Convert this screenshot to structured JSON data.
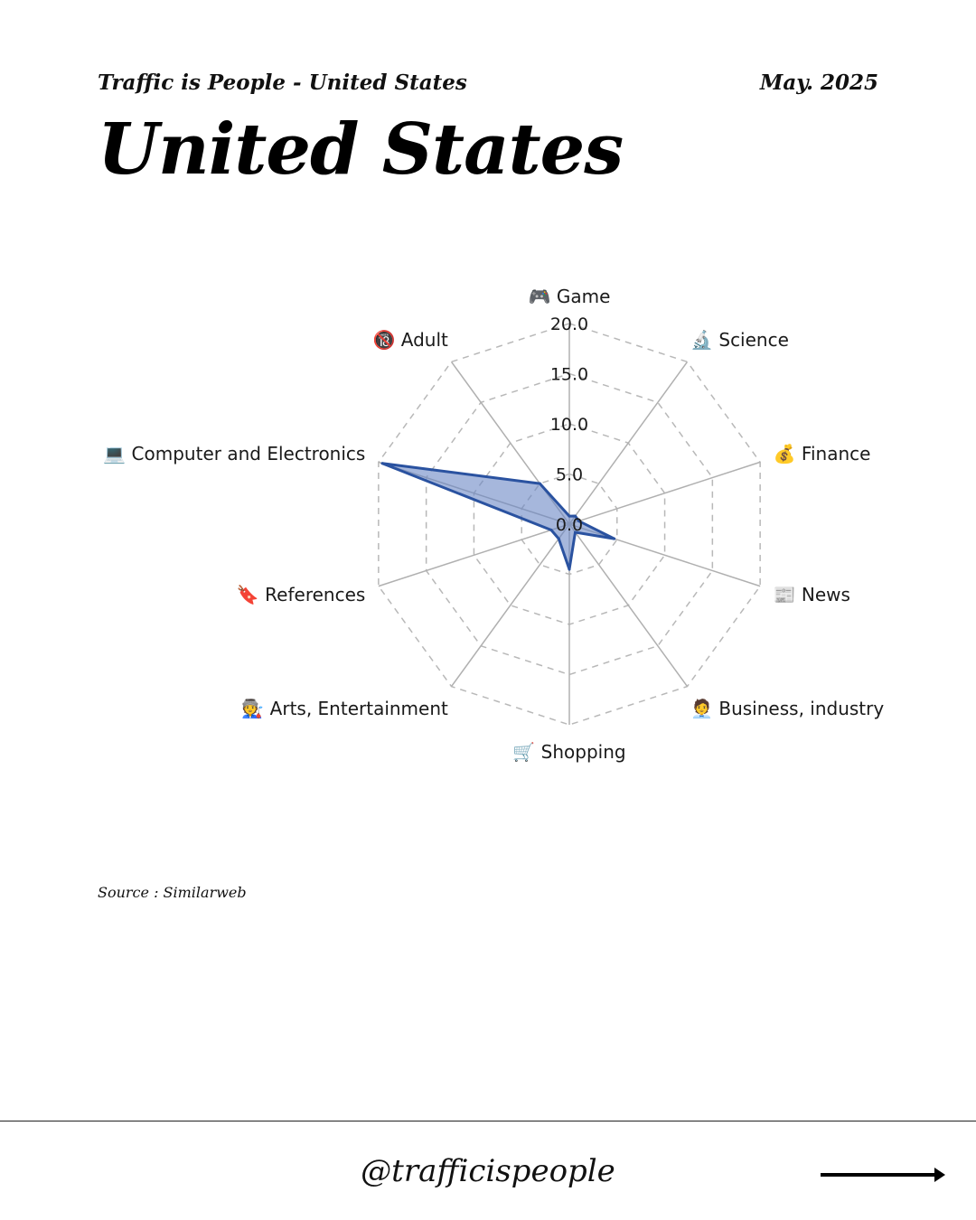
{
  "header": {
    "subtitle": "Traffic is People - United States",
    "date": "May. 2025",
    "title": "United States"
  },
  "source": "Source : Similarweb",
  "footer": {
    "handle": "@trafficispeople"
  },
  "colors": {
    "series_line": "#2a52a0",
    "series_fill": "#6b87c4",
    "grid": "#b8b8b8",
    "spoke": "#b0b0b0"
  },
  "icons": {
    "next": "arrow-right-icon"
  },
  "chart_data": {
    "type": "radar",
    "categories": [
      "🎮 Game",
      "🔬 Science",
      "💰 Finance",
      "📰 News",
      "🧑‍💼 Business, industry",
      "🛒 Shopping",
      "🧑‍🏭 Arts, Entertainment",
      "🔖 References",
      "💻 Computer and Electronics",
      "🔞 Adult"
    ],
    "series": [
      {
        "values": [
          0.8,
          1.0,
          1.0,
          4.7,
          1.0,
          4.5,
          1.8,
          1.9,
          19.6,
          5.0
        ]
      }
    ],
    "rlim": [
      0,
      20
    ],
    "ticks": [
      "0.0",
      "5.0",
      "10.0",
      "15.0",
      "20.0"
    ],
    "tick_values": [
      0,
      5,
      10,
      15,
      20
    ],
    "grid": true
  }
}
